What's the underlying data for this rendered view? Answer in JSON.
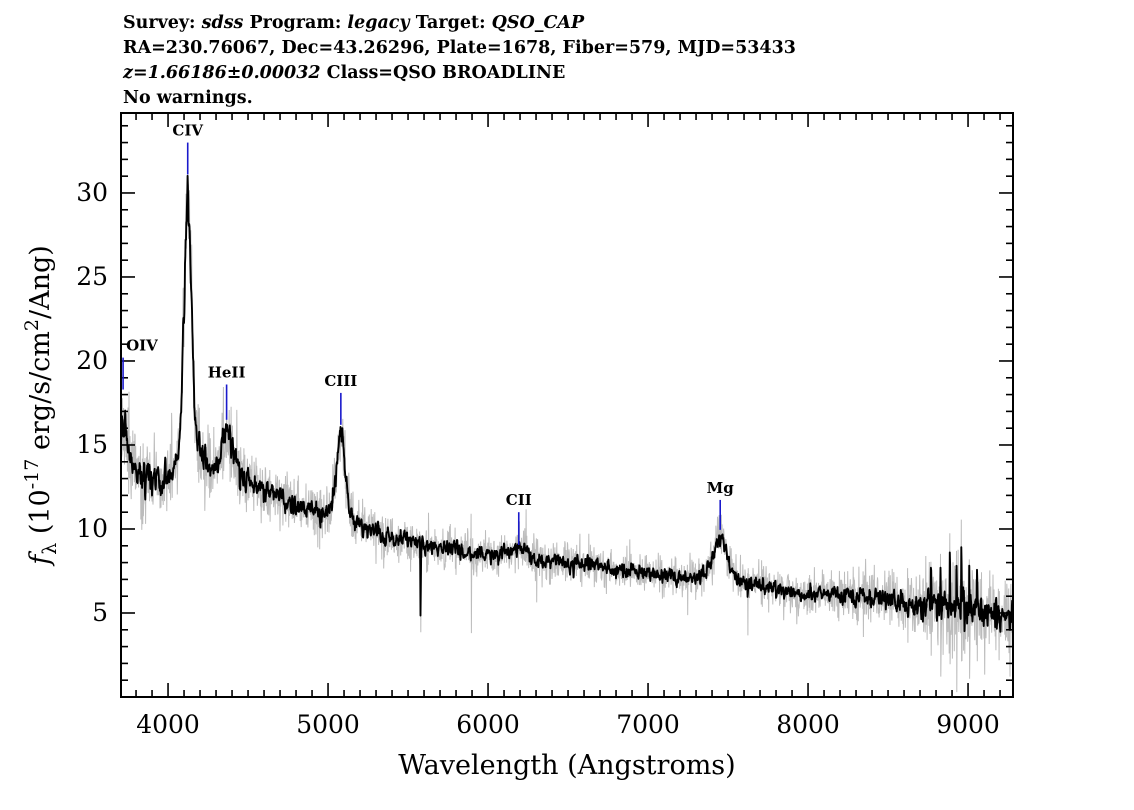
{
  "header": {
    "line1_parts": [
      {
        "text": "Survey: ",
        "style": ""
      },
      {
        "text": "sdss",
        "style": "italic"
      },
      {
        "text": " Program: ",
        "style": ""
      },
      {
        "text": "legacy",
        "style": "italic"
      },
      {
        "text": " Target: ",
        "style": ""
      },
      {
        "text": "QSO_CAP",
        "style": "italic"
      }
    ],
    "line2": "RA=230.76067, Dec=43.26296, Plate=1678, Fiber=579, MJD=53433",
    "line3_parts": [
      {
        "text": "z=1.66186±0.00032",
        "style": "italic"
      },
      {
        "text": " Class=QSO BROADLINE",
        "style": ""
      }
    ],
    "line4": "No warnings."
  },
  "chart_data": {
    "type": "line",
    "xlabel": "Wavelength (Angstroms)",
    "ylabel_parts": [
      {
        "text": "f",
        "style": "italic"
      },
      {
        "text": "λ",
        "style": "sub"
      },
      {
        "text": " (10",
        "style": ""
      },
      {
        "text": "-17",
        "style": "sup"
      },
      {
        "text": " erg/s/cm",
        "style": ""
      },
      {
        "text": "2",
        "style": "sup"
      },
      {
        "text": "/Ang)",
        "style": ""
      }
    ],
    "xlim": [
      3706,
      9281
    ],
    "ylim": [
      0,
      34.76
    ],
    "xticks": [
      4000,
      5000,
      6000,
      7000,
      8000,
      9000
    ],
    "yticks": [
      5,
      10,
      15,
      20,
      25,
      30
    ],
    "x_minor_step": 100,
    "y_minor_step": 1,
    "series": [
      {
        "name": "smoothed flux",
        "color": "#000000"
      },
      {
        "name": "unsmoothed flux / uncertainty",
        "color": "#bcbcbc"
      }
    ],
    "marker_color": "#1a1acc",
    "emission_lines": [
      {
        "label": "OIV",
        "wavelength": 3719,
        "tick_top": 20.2,
        "tick_bottom": 18.3,
        "anchor": "left"
      },
      {
        "label": "CIV",
        "wavelength": 4123,
        "tick_top": 33.0,
        "tick_bottom": 31.1,
        "anchor": "middle"
      },
      {
        "label": "HeII",
        "wavelength": 4366,
        "tick_top": 18.6,
        "tick_bottom": 16.5,
        "anchor": "middle"
      },
      {
        "label": "CIII",
        "wavelength": 5080,
        "tick_top": 18.1,
        "tick_bottom": 16.2,
        "anchor": "middle"
      },
      {
        "label": "CII",
        "wavelength": 6192,
        "tick_top": 11.0,
        "tick_bottom": 9.05,
        "anchor": "middle"
      },
      {
        "label": "Mg",
        "wavelength": 7451,
        "tick_top": 11.73,
        "tick_bottom": 9.95,
        "anchor": "middle"
      }
    ],
    "continuum_points": [
      [
        3706,
        13.6
      ],
      [
        3760,
        13.8
      ],
      [
        3820,
        13.3
      ],
      [
        3880,
        13.0
      ],
      [
        3950,
        12.4
      ],
      [
        4020,
        12.1
      ],
      [
        4080,
        12.0
      ],
      [
        4160,
        12.6
      ],
      [
        4240,
        12.9
      ],
      [
        4320,
        12.6
      ],
      [
        4430,
        12.9
      ],
      [
        4520,
        12.7
      ],
      [
        4600,
        12.3
      ],
      [
        4700,
        11.9
      ],
      [
        4800,
        11.3
      ],
      [
        4900,
        10.9
      ],
      [
        5000,
        10.4
      ],
      [
        5060,
        10.3
      ],
      [
        5160,
        10.0
      ],
      [
        5300,
        9.7
      ],
      [
        5450,
        9.4
      ],
      [
        5600,
        9.0
      ],
      [
        5750,
        8.8
      ],
      [
        5900,
        8.6
      ],
      [
        6050,
        8.5
      ],
      [
        6200,
        8.3
      ],
      [
        6350,
        8.1
      ],
      [
        6500,
        8.0
      ],
      [
        6650,
        7.9
      ],
      [
        6800,
        7.6
      ],
      [
        6950,
        7.4
      ],
      [
        7100,
        7.2
      ],
      [
        7250,
        7.0
      ],
      [
        7400,
        6.9
      ],
      [
        7550,
        6.8
      ],
      [
        7700,
        6.7
      ],
      [
        7850,
        6.4
      ],
      [
        7960,
        6.0
      ],
      [
        8080,
        6.3
      ],
      [
        8250,
        6.1
      ],
      [
        8400,
        5.9
      ],
      [
        8550,
        5.7
      ],
      [
        8700,
        5.5
      ],
      [
        8850,
        5.4
      ],
      [
        9000,
        5.2
      ],
      [
        9150,
        5.0
      ],
      [
        9281,
        4.8
      ]
    ],
    "line_profiles": [
      {
        "wavelength": 3719,
        "amplitude": 2.6,
        "sigma": 26
      },
      {
        "wavelength": 4123,
        "amplitude": 14.6,
        "sigma": 23
      },
      {
        "wavelength": 4123,
        "amplitude": 2.6,
        "sigma": 85
      },
      {
        "wavelength": 4366,
        "amplitude": 2.9,
        "sigma": 42
      },
      {
        "wavelength": 5080,
        "amplitude": 4.4,
        "sigma": 27
      },
      {
        "wavelength": 5080,
        "amplitude": 0.8,
        "sigma": 90
      },
      {
        "wavelength": 6192,
        "amplitude": 0.55,
        "sigma": 55
      },
      {
        "wavelength": 7451,
        "amplitude": 2.4,
        "sigma": 36
      },
      {
        "wavelength": 7451,
        "amplitude": 0.4,
        "sigma": 110
      }
    ],
    "noise_sigma_points": [
      [
        3706,
        1.35
      ],
      [
        3800,
        1.15
      ],
      [
        3950,
        1.0
      ],
      [
        4200,
        0.9
      ],
      [
        4600,
        0.85
      ],
      [
        5000,
        0.8
      ],
      [
        5400,
        0.75
      ],
      [
        5800,
        0.72
      ],
      [
        6200,
        0.7
      ],
      [
        6600,
        0.66
      ],
      [
        7000,
        0.65
      ],
      [
        7400,
        0.68
      ],
      [
        7800,
        0.75
      ],
      [
        8200,
        0.85
      ],
      [
        8500,
        1.0
      ],
      [
        8700,
        1.4
      ],
      [
        8850,
        1.75
      ],
      [
        9000,
        1.9
      ],
      [
        9100,
        1.8
      ],
      [
        9200,
        1.4
      ],
      [
        9281,
        1.2
      ]
    ],
    "sky_residual_spikes": [
      {
        "wl": 5577,
        "gray_up": 0.6,
        "gray_down": -5.2,
        "black": -3.9
      },
      {
        "wl": 5893,
        "gray_up": 2.3,
        "gray_down": -4.8,
        "black": 0
      },
      {
        "wl": 6302,
        "gray_up": 1.2,
        "gray_down": -2.6,
        "black": -0.4
      },
      {
        "wl": 7246,
        "gray_up": 0.8,
        "gray_down": -2.2,
        "black": 0
      },
      {
        "wl": 7621,
        "gray_up": 0.5,
        "gray_down": -3.2,
        "black": -0.8
      },
      {
        "wl": 8344,
        "gray_up": 1.5,
        "gray_down": -2.4,
        "black": 0.4
      },
      {
        "wl": 8768,
        "gray_up": 2.6,
        "gray_down": -3.0,
        "black": 1.9
      },
      {
        "wl": 8828,
        "gray_up": 3.1,
        "gray_down": -4.2,
        "black": 2.5
      },
      {
        "wl": 8886,
        "gray_up": 4.4,
        "gray_down": -3.4,
        "black": 3.1
      },
      {
        "wl": 8928,
        "gray_up": 3.4,
        "gray_down": -5.0,
        "black": 2.6
      },
      {
        "wl": 8958,
        "gray_up": 5.3,
        "gray_down": -3.1,
        "black": 3.7
      },
      {
        "wl": 9008,
        "gray_up": 3.0,
        "gray_down": -4.1,
        "black": 2.2
      },
      {
        "wl": 9056,
        "gray_up": 2.2,
        "gray_down": -3.0,
        "black": 1.4
      }
    ]
  }
}
